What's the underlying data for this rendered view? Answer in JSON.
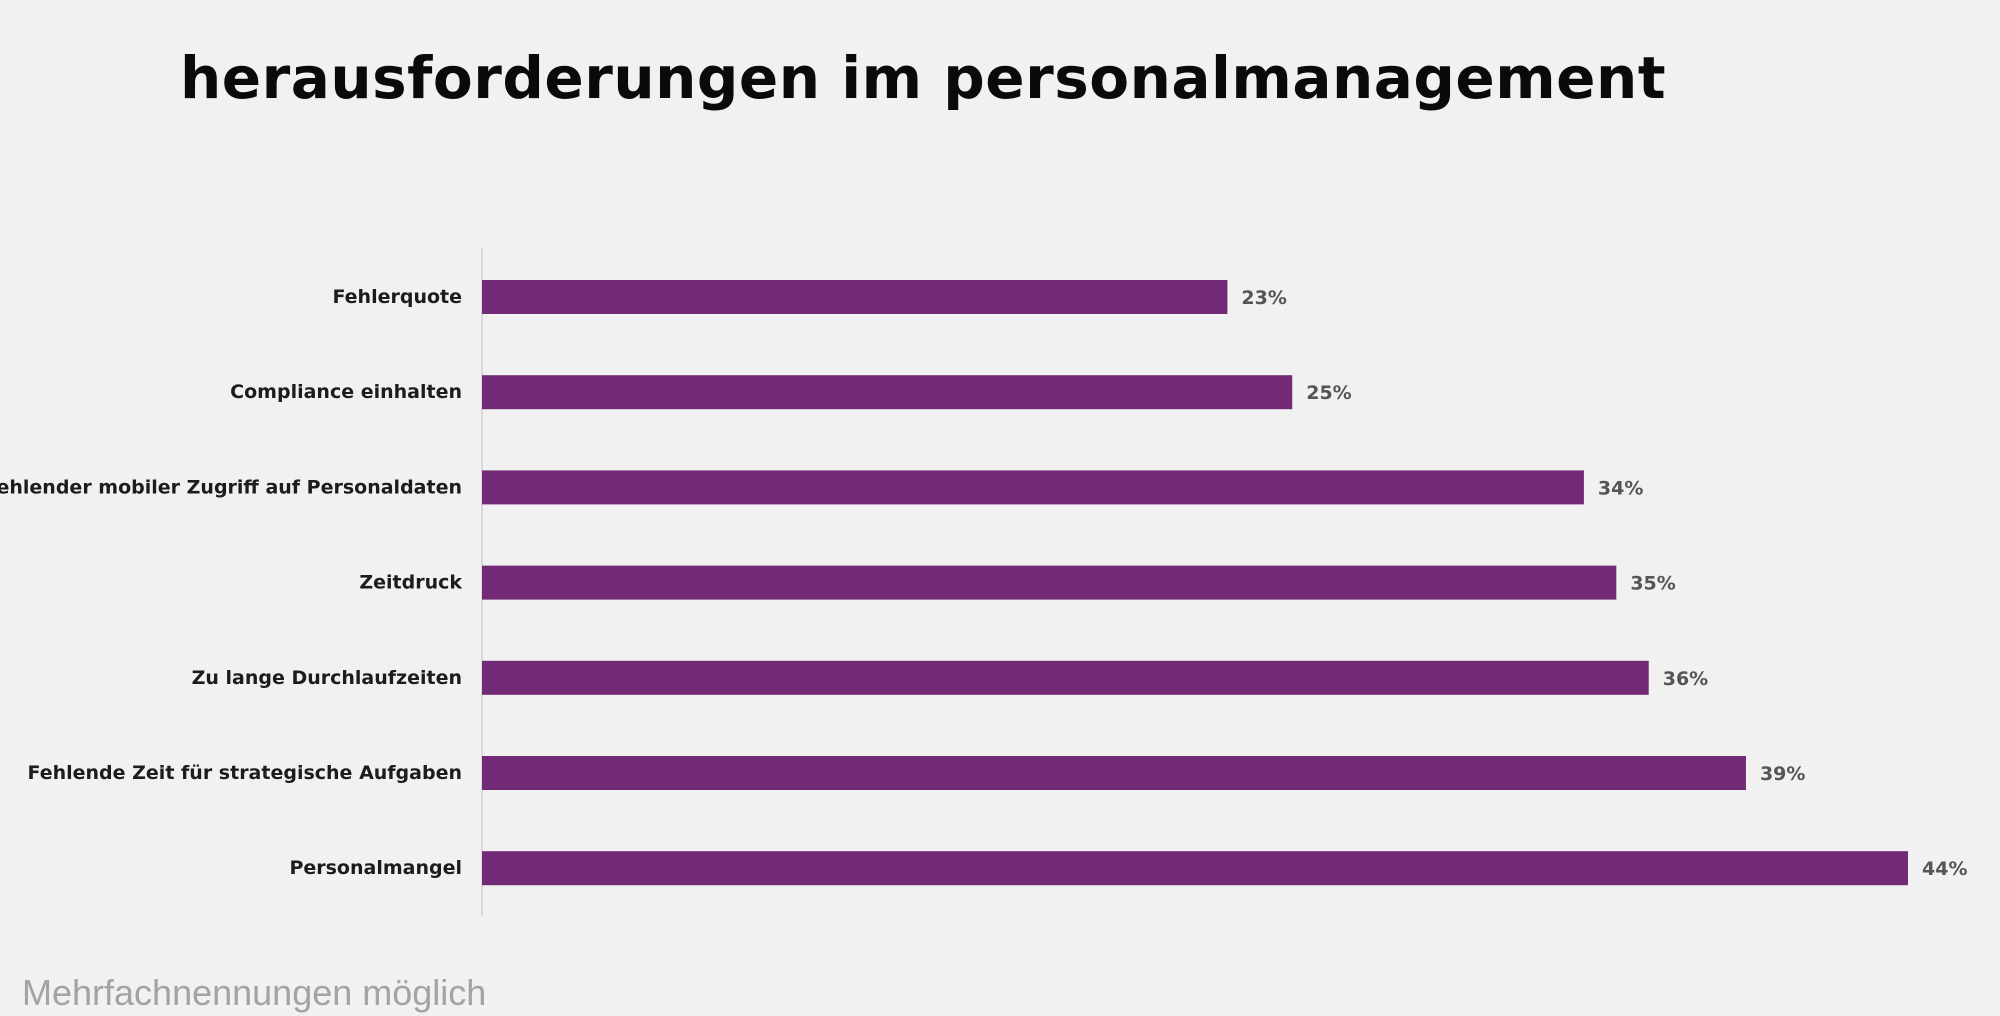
{
  "page": {
    "title": "herausforderungen im personalmanagement",
    "footnote": "Mehrfachnennungen möglich"
  },
  "colors": {
    "background": "#f1f1f1",
    "bar": "#722a77",
    "category_label": "#1c1c1c",
    "value_label": "#555555",
    "axis_line": "#d9d9d9"
  },
  "chart_data": {
    "type": "bar",
    "orientation": "horizontal",
    "title": "",
    "xlabel": "",
    "ylabel": "",
    "categories": [
      "Fehlerquote",
      "Compliance einhalten",
      "Fehlender mobiler Zugriff auf Personaldaten",
      "Zeitdruck",
      "Zu lange Durchlaufzeiten",
      "Fehlende Zeit für strategische Aufgaben",
      "Personalmangel"
    ],
    "values": [
      23,
      25,
      34,
      35,
      36,
      39,
      44
    ],
    "data_labels": [
      "23%",
      "25%",
      "34%",
      "35%",
      "36%",
      "39%",
      "44%"
    ],
    "unit": "%",
    "xlim": [
      0,
      44
    ],
    "grid": false,
    "legend": "none"
  }
}
